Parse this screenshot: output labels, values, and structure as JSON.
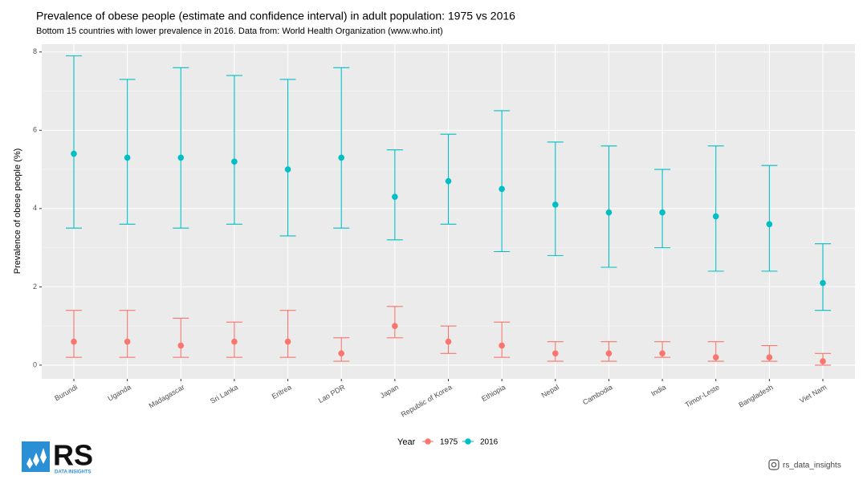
{
  "chart_data": {
    "type": "errorbar",
    "title": "Prevalence of obese people (estimate and confidence interval) in adult population: 1975 vs 2016",
    "subtitle": "Bottom 15 countries with lower prevalence in 2016. Data from: World Health Organization (www.who.int)",
    "y_label": "Prevalence of obese people (%)",
    "legend_title": "Year",
    "legend_position": "bottom",
    "grid": true,
    "categories": [
      "Burundi",
      "Uganda",
      "Madagascar",
      "Sri Lanka",
      "Eritrea",
      "Lao PDR",
      "Japan",
      "Republic of Korea",
      "Ethiopia",
      "Nepal",
      "Cambodia",
      "India",
      "Timor-Leste",
      "Bangladesh",
      "Viet Nam"
    ],
    "series": [
      {
        "name": "1975",
        "color": "#F8766D",
        "values": [
          0.6,
          0.6,
          0.5,
          0.6,
          0.6,
          0.3,
          1.0,
          0.6,
          0.5,
          0.3,
          0.3,
          0.3,
          0.2,
          0.2,
          0.1
        ],
        "lower": [
          0.2,
          0.2,
          0.2,
          0.2,
          0.2,
          0.1,
          0.7,
          0.3,
          0.2,
          0.1,
          0.1,
          0.2,
          0.1,
          0.1,
          0.0
        ],
        "upper": [
          1.4,
          1.4,
          1.2,
          1.1,
          1.4,
          0.7,
          1.5,
          1.0,
          1.1,
          0.6,
          0.6,
          0.6,
          0.6,
          0.5,
          0.3
        ]
      },
      {
        "name": "2016",
        "color": "#00BFC4",
        "values": [
          5.4,
          5.3,
          5.3,
          5.2,
          5.0,
          5.3,
          4.3,
          4.7,
          4.5,
          4.1,
          3.9,
          3.9,
          3.8,
          3.6,
          2.1
        ],
        "lower": [
          3.5,
          3.6,
          3.5,
          3.6,
          3.3,
          3.5,
          3.2,
          3.6,
          2.9,
          2.8,
          2.5,
          3.0,
          2.4,
          2.4,
          1.4
        ],
        "upper": [
          7.9,
          7.3,
          7.6,
          7.4,
          7.3,
          7.6,
          5.5,
          5.9,
          6.5,
          5.7,
          5.6,
          5.0,
          5.6,
          5.1,
          3.1
        ]
      }
    ],
    "ylim": [
      -0.35,
      8.2
    ],
    "yticks": [
      0,
      2,
      4,
      6,
      8
    ]
  },
  "branding": {
    "logo": "RS",
    "logo_sub": "DATA INSIGHTS",
    "handle": "rs_data_insights"
  }
}
